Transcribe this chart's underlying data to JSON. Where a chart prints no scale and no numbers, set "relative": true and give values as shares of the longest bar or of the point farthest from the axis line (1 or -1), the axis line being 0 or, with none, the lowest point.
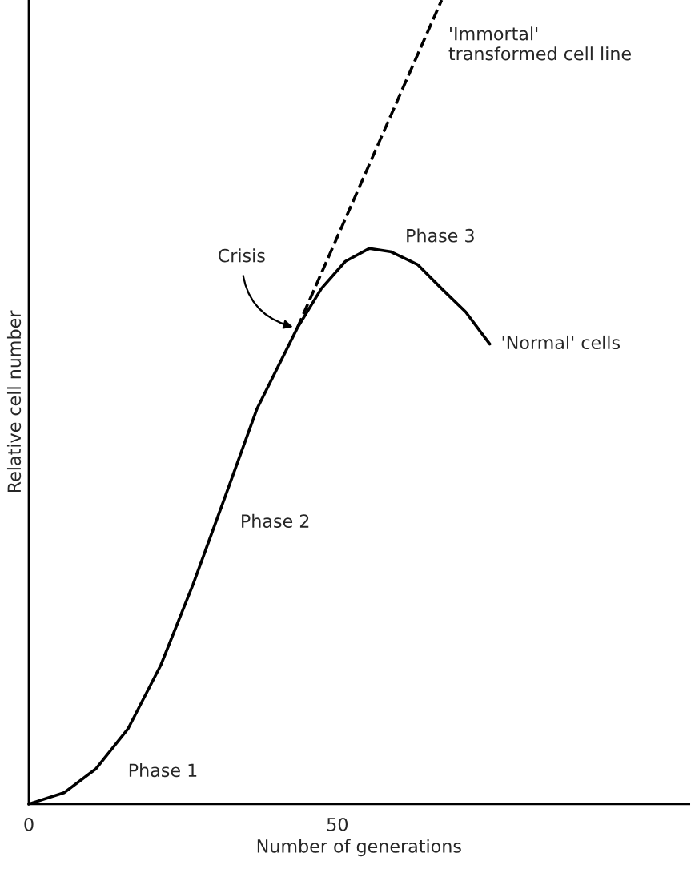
{
  "chart_data": {
    "type": "line",
    "relative": true,
    "xlabel": "Number of generations",
    "ylabel": "Relative cell number",
    "xlim": [
      0,
      107
    ],
    "xticks": [
      0,
      50
    ],
    "grid": false,
    "legend": false,
    "marker": "none",
    "series": [
      {
        "name": "'Normal' cells",
        "color": "#000000",
        "line_style": "solid",
        "x": [
          0,
          5.7,
          10.9,
          16.1,
          21.4,
          26.6,
          31.8,
          37.0,
          43.5,
          47.4,
          51.3,
          55.2,
          58.6,
          63.0,
          66.9,
          70.8,
          74.7
        ],
        "values": [
          0,
          0.014,
          0.044,
          0.094,
          0.173,
          0.273,
          0.382,
          0.492,
          0.592,
          0.641,
          0.675,
          0.691,
          0.687,
          0.671,
          0.641,
          0.612,
          0.572
        ]
      },
      {
        "name": "'Immortal'\ntransformed cell line",
        "color": "#000000",
        "line_style": "dashed",
        "x": [
          43.5,
          66.9
        ],
        "values": [
          0.592,
          1
        ]
      }
    ],
    "annotations": [
      {
        "text": "Crisis",
        "x": 43.5,
        "y": 0.592
      },
      "Phase 1",
      "Phase 2",
      "Phase 3"
    ]
  }
}
